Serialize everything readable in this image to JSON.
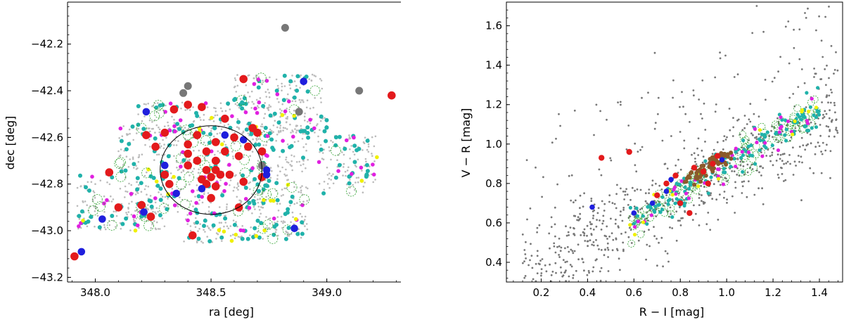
{
  "chart_data": [
    {
      "type": "scatter",
      "xlabel": "ra [deg]",
      "ylabel": "dec [deg]",
      "xlim": [
        347.88,
        349.32
      ],
      "ylim": [
        -43.22,
        -42.02
      ],
      "y_inverted_sign": "negative values increase upward",
      "xticks": [
        {
          "v": 348.0,
          "label": "348.0"
        },
        {
          "v": 348.5,
          "label": "348.5"
        },
        {
          "v": 349.0,
          "label": "349.0"
        }
      ],
      "yticks": [
        {
          "v": -42.2,
          "label": "−42.2"
        },
        {
          "v": -42.4,
          "label": "−42.4"
        },
        {
          "v": -42.6,
          "label": "−42.6"
        },
        {
          "v": -42.8,
          "label": "−42.8"
        },
        {
          "v": -43.0,
          "label": "−43.0"
        },
        {
          "v": -43.2,
          "label": "−43.2"
        }
      ],
      "field_circle": {
        "center": [
          348.5,
          -42.74
        ],
        "radius_ra": 0.22,
        "radius_dec": 0.19
      },
      "footprint_blocks": [
        [
          348.22,
          348.74,
          -42.93,
          -42.55
        ],
        [
          348.18,
          348.9,
          -42.58,
          -42.45
        ],
        [
          348.1,
          348.22,
          -42.95,
          -42.55
        ],
        [
          348.7,
          348.92,
          -42.95,
          -42.55
        ],
        [
          348.38,
          348.62,
          -43.06,
          -42.92
        ],
        [
          348.62,
          348.92,
          -43.04,
          -42.95
        ],
        [
          348.6,
          348.76,
          -42.48,
          -42.33
        ],
        [
          348.78,
          348.98,
          -42.45,
          -42.33
        ],
        [
          348.86,
          349.0,
          -42.58,
          -42.47
        ],
        [
          347.92,
          348.08,
          -42.9,
          -42.76
        ],
        [
          347.92,
          348.3,
          -43.0,
          -42.9
        ],
        [
          348.96,
          349.22,
          -42.73,
          -42.59
        ],
        [
          348.96,
          349.22,
          -42.84,
          -42.74
        ]
      ],
      "series": [
        {
          "color": "#bbbbbb",
          "role": "footprint",
          "count": 1100,
          "r": 1.3
        },
        {
          "color": "#20b2aa",
          "count": 230,
          "r": 3.0
        },
        {
          "color": "#e020e0",
          "count": 75,
          "r": 2.8
        },
        {
          "color": "#f0f000",
          "count": 30,
          "r": 2.8
        },
        {
          "color": "#2ca02c",
          "style": "dashed-ring",
          "count": 50,
          "r": 7
        },
        {
          "color": "#777777",
          "points": [
            [
              348.82,
              -42.13
            ],
            [
              348.4,
              -42.38
            ],
            [
              348.38,
              -42.41
            ],
            [
              349.14,
              -42.4
            ],
            [
              348.88,
              -42.49
            ],
            [
              348.72,
              -42.72
            ]
          ],
          "r": 5.5
        },
        {
          "color": "#e31a1c",
          "points": [
            [
              349.28,
              -42.42
            ],
            [
              348.64,
              -42.35
            ],
            [
              348.4,
              -42.46
            ],
            [
              348.34,
              -42.48
            ],
            [
              348.46,
              -42.47
            ],
            [
              348.56,
              -42.52
            ],
            [
              348.68,
              -42.56
            ],
            [
              348.7,
              -42.58
            ],
            [
              348.3,
              -42.58
            ],
            [
              348.22,
              -42.59
            ],
            [
              348.44,
              -42.59
            ],
            [
              348.52,
              -42.62
            ],
            [
              348.6,
              -42.6
            ],
            [
              348.66,
              -42.64
            ],
            [
              348.72,
              -42.66
            ],
            [
              348.26,
              -42.64
            ],
            [
              348.4,
              -42.63
            ],
            [
              348.4,
              -42.67
            ],
            [
              348.48,
              -42.66
            ],
            [
              348.56,
              -42.66
            ],
            [
              348.62,
              -42.68
            ],
            [
              348.52,
              -42.7
            ],
            [
              348.44,
              -42.7
            ],
            [
              348.48,
              -42.74
            ],
            [
              348.52,
              -42.74
            ],
            [
              348.5,
              -42.77
            ],
            [
              348.46,
              -42.78
            ],
            [
              348.54,
              -42.76
            ],
            [
              348.58,
              -42.76
            ],
            [
              348.48,
              -42.8
            ],
            [
              348.52,
              -42.81
            ],
            [
              348.64,
              -42.79
            ],
            [
              348.72,
              -42.77
            ],
            [
              348.4,
              -42.72
            ],
            [
              348.3,
              -42.76
            ],
            [
              348.06,
              -42.75
            ],
            [
              348.62,
              -42.9
            ],
            [
              348.1,
              -42.9
            ],
            [
              348.42,
              -43.02
            ],
            [
              348.2,
              -42.89
            ],
            [
              348.24,
              -42.94
            ],
            [
              347.91,
              -43.11
            ],
            [
              348.5,
              -42.86
            ],
            [
              348.32,
              -42.8
            ]
          ],
          "r": 5.8
        },
        {
          "color": "#1f1fdd",
          "points": [
            [
              348.9,
              -42.36
            ],
            [
              348.22,
              -42.49
            ],
            [
              348.56,
              -42.59
            ],
            [
              348.64,
              -42.61
            ],
            [
              348.74,
              -42.74
            ],
            [
              348.46,
              -42.82
            ],
            [
              348.35,
              -42.84
            ],
            [
              347.94,
              -43.09
            ],
            [
              348.03,
              -42.95
            ],
            [
              348.21,
              -42.92
            ],
            [
              348.86,
              -42.99
            ],
            [
              348.74,
              -42.76
            ],
            [
              348.3,
              -42.72
            ]
          ],
          "r": 5.3
        }
      ]
    },
    {
      "type": "scatter",
      "xlabel": "R − I [mag]",
      "ylabel": "V − R [mag]",
      "xlim": [
        0.05,
        1.5
      ],
      "ylim": [
        0.3,
        1.72
      ],
      "xticks": [
        {
          "v": 0.2,
          "label": "0.2"
        },
        {
          "v": 0.4,
          "label": "0.4"
        },
        {
          "v": 0.6,
          "label": "0.6"
        },
        {
          "v": 0.8,
          "label": "0.8"
        },
        {
          "v": 1.0,
          "label": "1.0"
        },
        {
          "v": 1.2,
          "label": "1.2"
        },
        {
          "v": 1.4,
          "label": "1.4"
        }
      ],
      "yticks": [
        {
          "v": 0.4,
          "label": "0.4"
        },
        {
          "v": 0.6,
          "label": "0.6"
        },
        {
          "v": 0.8,
          "label": "0.8"
        },
        {
          "v": 1.0,
          "label": "1.0"
        },
        {
          "v": 1.2,
          "label": "1.2"
        },
        {
          "v": 1.4,
          "label": "1.4"
        },
        {
          "v": 1.6,
          "label": "1.6"
        }
      ],
      "series": [
        {
          "color": "#777777",
          "role": "field-stars",
          "count": 800,
          "r": 1.4
        },
        {
          "color": "#2ca02c",
          "style": "dashed-ring",
          "count": 110,
          "r": 5
        },
        {
          "color": "#20b2aa",
          "count": 140,
          "r": 2.6
        },
        {
          "color": "#e020e0",
          "count": 38,
          "r": 2.6
        },
        {
          "color": "#f0f000",
          "count": 16,
          "r": 2.6
        },
        {
          "color": "#8b5a2b",
          "count": 60,
          "r": 3.0
        },
        {
          "color": "#e31a1c",
          "points": [
            [
              0.46,
              0.93
            ],
            [
              0.58,
              0.96
            ],
            [
              0.74,
              0.8
            ],
            [
              0.7,
              0.74
            ],
            [
              0.8,
              0.7
            ],
            [
              0.84,
              0.65
            ],
            [
              0.9,
              0.86
            ],
            [
              0.94,
              0.9
            ],
            [
              0.86,
              0.88
            ],
            [
              0.96,
              0.94
            ],
            [
              0.92,
              0.8
            ],
            [
              0.78,
              0.84
            ]
          ],
          "r": 4.2
        },
        {
          "color": "#1f1fdd",
          "points": [
            [
              0.42,
              0.68
            ],
            [
              0.68,
              0.7
            ],
            [
              0.76,
              0.82
            ],
            [
              0.74,
              0.76
            ],
            [
              0.98,
              0.92
            ],
            [
              0.6,
              0.65
            ]
          ],
          "r": 3.8
        }
      ]
    }
  ]
}
